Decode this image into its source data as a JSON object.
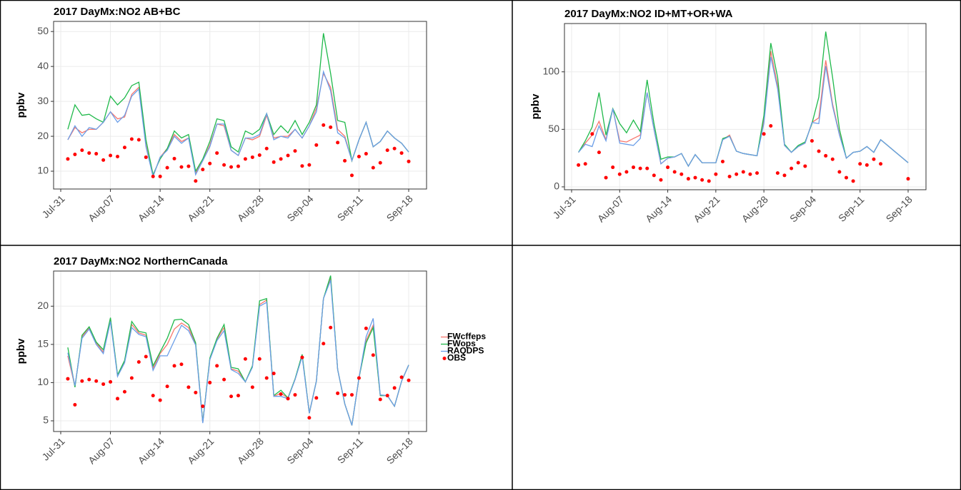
{
  "chart_data": [
    {
      "type": "line",
      "title": "2017 DayMx:NO2 AB+BC",
      "y_label": "ppbv",
      "x": [
        "Jul-31",
        "Aug-01",
        "Aug-02",
        "Aug-03",
        "Aug-04",
        "Aug-05",
        "Aug-06",
        "Aug-07",
        "Aug-08",
        "Aug-09",
        "Aug-10",
        "Aug-11",
        "Aug-12",
        "Aug-13",
        "Aug-14",
        "Aug-15",
        "Aug-16",
        "Aug-17",
        "Aug-18",
        "Aug-19",
        "Aug-20",
        "Aug-21",
        "Aug-22",
        "Aug-23",
        "Aug-24",
        "Aug-25",
        "Aug-26",
        "Aug-27",
        "Aug-28",
        "Aug-29",
        "Aug-30",
        "Aug-31",
        "Sep-01",
        "Sep-02",
        "Sep-03",
        "Sep-04",
        "Sep-05",
        "Sep-06",
        "Sep-07",
        "Sep-08",
        "Sep-09",
        "Sep-10",
        "Sep-11",
        "Sep-12",
        "Sep-13",
        "Sep-14",
        "Sep-15",
        "Sep-16",
        "Sep-17",
        "Sep-18"
      ],
      "xticks": [
        "Jul-31",
        "Aug-07",
        "Aug-14",
        "Aug-21",
        "Aug-28",
        "Sep-04",
        "Sep-11",
        "Sep-18"
      ],
      "ylim": [
        4.9,
        52.9
      ],
      "yticks": [
        10,
        20,
        30,
        40,
        50
      ],
      "grid": true,
      "series": [
        {
          "color": "#f8766d",
          "values": [
            null,
            19,
            22.5,
            21,
            22,
            22,
            24,
            27,
            25,
            25.5,
            32,
            34,
            17.5,
            8.5,
            14,
            16.5,
            20.5,
            18.5,
            19.5,
            9.5,
            13,
            17.5,
            23.5,
            23,
            16,
            14.5,
            19.5,
            19,
            20,
            26,
            19.5,
            20,
            20,
            22,
            19.5,
            23,
            28,
            38,
            34,
            22,
            20,
            13,
            19,
            24,
            17,
            18.5,
            21.5,
            19.5,
            18,
            15.5
          ]
        },
        {
          "color": "#1fb94a",
          "values": [
            null,
            22,
            29,
            26,
            26.3,
            25,
            24,
            31.5,
            29,
            31,
            34.5,
            35.5,
            19,
            9,
            13.5,
            16.5,
            21.5,
            19.5,
            20.5,
            10,
            13.5,
            18.5,
            25,
            24.5,
            17,
            15.5,
            21.5,
            20.5,
            22,
            26.5,
            20.5,
            23,
            21,
            24.5,
            20.5,
            24,
            29,
            49.5,
            38,
            24.5,
            24,
            13,
            19,
            24,
            17,
            18.5,
            21.5,
            19.5,
            18,
            15.5
          ]
        },
        {
          "color": "#6b9ee8",
          "values": [
            null,
            19,
            23,
            20,
            22.5,
            22,
            24,
            27,
            24,
            26,
            31.5,
            33.5,
            17,
            8.5,
            14,
            16,
            20,
            18,
            19.5,
            9,
            13,
            17,
            23.5,
            23.5,
            16,
            14.5,
            19.5,
            19.5,
            20.5,
            26.5,
            19,
            20,
            19.5,
            22,
            19.5,
            23,
            27,
            38.5,
            33,
            21,
            19.5,
            13,
            19,
            24,
            17,
            18.5,
            21.5,
            19.5,
            18,
            15.5
          ]
        },
        {
          "type": "scatter",
          "color": "#ff0000",
          "values": [
            null,
            13.5,
            14.8,
            16,
            15.2,
            15,
            13.2,
            14.5,
            14.2,
            16.8,
            19.2,
            19,
            14,
            8.5,
            8.5,
            11,
            13.6,
            11.2,
            11.4,
            7.2,
            10.5,
            12.2,
            15.2,
            11.8,
            11.2,
            11.4,
            13.5,
            14,
            14.6,
            16.5,
            12.6,
            13.5,
            14.5,
            15.8,
            11.5,
            11.8,
            17.5,
            23.2,
            22.6,
            18.2,
            13,
            8.8,
            14.2,
            15,
            11,
            12.4,
            16,
            16.5,
            15.2,
            12.8
          ]
        }
      ]
    },
    {
      "type": "line",
      "title": "2017 DayMx:NO2 ID+MT+OR+WA",
      "y_label": "ppbv",
      "x": [
        "Jul-31",
        "Aug-01",
        "Aug-02",
        "Aug-03",
        "Aug-04",
        "Aug-05",
        "Aug-06",
        "Aug-07",
        "Aug-08",
        "Aug-09",
        "Aug-10",
        "Aug-11",
        "Aug-12",
        "Aug-13",
        "Aug-14",
        "Aug-15",
        "Aug-16",
        "Aug-17",
        "Aug-18",
        "Aug-19",
        "Aug-20",
        "Aug-21",
        "Aug-22",
        "Aug-23",
        "Aug-24",
        "Aug-25",
        "Aug-26",
        "Aug-27",
        "Aug-28",
        "Aug-29",
        "Aug-30",
        "Aug-31",
        "Sep-01",
        "Sep-02",
        "Sep-03",
        "Sep-04",
        "Sep-05",
        "Sep-06",
        "Sep-07",
        "Sep-08",
        "Sep-09",
        "Sep-10",
        "Sep-11",
        "Sep-12",
        "Sep-13",
        "Sep-14",
        "Sep-15",
        "Sep-16",
        "Sep-17",
        "Sep-18"
      ],
      "xticks": [
        "Jul-31",
        "Aug-07",
        "Aug-14",
        "Aug-21",
        "Aug-28",
        "Sep-04",
        "Sep-11",
        "Sep-18"
      ],
      "ylim": [
        -2.5,
        142
      ],
      "yticks": [
        0,
        50,
        100
      ],
      "grid": true,
      "series": [
        {
          "color": "#f8766d",
          "values": [
            null,
            30,
            38,
            45,
            57,
            41,
            68,
            40,
            39,
            42,
            45,
            82,
            50,
            20,
            25,
            26,
            29,
            18,
            28,
            21,
            21,
            21,
            41,
            45,
            31,
            29,
            28,
            27,
            58,
            118,
            88,
            36,
            30,
            35,
            38,
            56,
            60,
            110,
            72,
            46,
            25,
            30,
            31,
            35,
            30,
            41,
            36,
            31,
            26,
            21
          ]
        },
        {
          "color": "#1fb94a",
          "values": [
            null,
            30,
            40,
            52,
            82,
            45,
            68,
            55,
            47,
            58,
            48,
            93,
            55,
            24,
            26,
            26,
            29,
            18,
            28,
            21,
            21,
            21,
            42,
            44,
            31,
            29,
            28,
            27,
            62,
            125,
            95,
            37,
            30,
            36,
            39,
            55,
            78,
            135,
            95,
            50,
            25,
            30,
            31,
            35,
            30,
            41,
            36,
            31,
            26,
            21
          ]
        },
        {
          "color": "#6b9ee8",
          "values": [
            null,
            30,
            37,
            35,
            53,
            40,
            68,
            38,
            37,
            36,
            42,
            82,
            50,
            20,
            25,
            26,
            29,
            18,
            28,
            21,
            21,
            21,
            41,
            44,
            31,
            29,
            28,
            27,
            55,
            113,
            85,
            36,
            30,
            35,
            38,
            56,
            55,
            105,
            70,
            45,
            25,
            30,
            31,
            35,
            30,
            41,
            36,
            31,
            26,
            21
          ]
        },
        {
          "type": "scatter",
          "color": "#ff0000",
          "values": [
            null,
            19,
            20,
            46,
            30,
            8,
            17,
            11,
            13,
            17,
            16,
            16,
            10,
            6,
            17,
            13,
            11,
            7,
            8,
            6,
            5,
            11,
            22,
            9,
            11,
            13,
            11,
            12,
            46,
            53,
            12,
            10,
            16,
            21,
            18,
            40,
            31,
            27,
            24,
            13,
            8,
            5,
            20,
            19,
            24,
            20,
            null,
            null,
            null,
            7
          ]
        }
      ]
    },
    {
      "type": "line",
      "title": "2017 DayMx:NO2 NorthernCanada",
      "y_label": "ppbv",
      "legend": "right",
      "x": [
        "Jul-31",
        "Aug-01",
        "Aug-02",
        "Aug-03",
        "Aug-04",
        "Aug-05",
        "Aug-06",
        "Aug-07",
        "Aug-08",
        "Aug-09",
        "Aug-10",
        "Aug-11",
        "Aug-12",
        "Aug-13",
        "Aug-14",
        "Aug-15",
        "Aug-16",
        "Aug-17",
        "Aug-18",
        "Aug-19",
        "Aug-20",
        "Aug-21",
        "Aug-22",
        "Aug-23",
        "Aug-24",
        "Aug-25",
        "Aug-26",
        "Aug-27",
        "Aug-28",
        "Aug-29",
        "Aug-30",
        "Aug-31",
        "Sep-01",
        "Sep-02",
        "Sep-03",
        "Sep-04",
        "Sep-05",
        "Sep-06",
        "Sep-07",
        "Sep-08",
        "Sep-09",
        "Sep-10",
        "Sep-11",
        "Sep-12",
        "Sep-13",
        "Sep-14",
        "Sep-15",
        "Sep-16",
        "Sep-17",
        "Sep-18"
      ],
      "xticks": [
        "Jul-31",
        "Aug-07",
        "Aug-14",
        "Aug-21",
        "Aug-28",
        "Sep-04",
        "Sep-11",
        "Sep-18"
      ],
      "ylim": [
        3.6,
        24.6
      ],
      "yticks": [
        5,
        10,
        15,
        20
      ],
      "grid": true,
      "series": [
        {
          "name": "FWcffeps",
          "color": "#f8766d",
          "values": [
            null,
            13.5,
            9.5,
            16,
            17.2,
            15.2,
            14,
            18.3,
            10.9,
            12.8,
            17.6,
            16.5,
            16.2,
            11.9,
            13.8,
            15,
            17,
            17.8,
            17.2,
            15,
            4.8,
            13.1,
            15.7,
            17.2,
            11.8,
            11.5,
            10.1,
            12.1,
            20.2,
            20.8,
            8.2,
            8.6,
            8,
            10.4,
            13.5,
            6,
            10.2,
            21,
            23.7,
            11.7,
            7.2,
            4.4,
            10.6,
            15.5,
            17.5,
            8.3,
            8.3,
            6.9,
            10.2,
            12.3
          ]
        },
        {
          "name": "FWops",
          "color": "#1fb94a",
          "values": [
            null,
            14.6,
            9.4,
            16.2,
            17.3,
            15.3,
            14.3,
            18.5,
            11,
            12.9,
            18,
            16.7,
            16.5,
            12.2,
            14,
            15.8,
            18.2,
            18.3,
            17.6,
            15.2,
            4.8,
            13.2,
            15.8,
            17.6,
            12,
            11.8,
            10.1,
            12.2,
            20.7,
            21,
            8.3,
            9,
            8,
            10.5,
            13.7,
            6,
            10.2,
            21,
            24,
            11.7,
            7.2,
            4.4,
            10.6,
            15.2,
            17.2,
            8.3,
            8.3,
            6.9,
            10.2,
            12.3
          ]
        },
        {
          "name": "RAQDPS",
          "color": "#6b9ee8",
          "values": [
            null,
            13.9,
            9.6,
            15.8,
            17,
            15,
            13.8,
            18,
            10.8,
            12.6,
            17.2,
            16.3,
            16,
            11.6,
            13.5,
            13.5,
            15.5,
            17.5,
            16.8,
            14.9,
            4.7,
            13,
            15.5,
            16.8,
            11.7,
            11.2,
            10.1,
            12,
            20,
            20.5,
            8.2,
            8.2,
            7.9,
            10.4,
            13.4,
            6,
            10.2,
            21,
            23.4,
            11.7,
            7.2,
            4.4,
            10.6,
            16,
            18.4,
            8.4,
            8.3,
            6.9,
            10.2,
            12.3
          ]
        },
        {
          "name": "OBS",
          "type": "scatter",
          "color": "#ff0000",
          "values": [
            null,
            10.5,
            7.1,
            10.2,
            10.4,
            10.2,
            9.8,
            10.1,
            7.9,
            8.8,
            10.6,
            12.7,
            13.4,
            8.3,
            7.7,
            9.5,
            12.2,
            12.4,
            9.4,
            8.7,
            6.9,
            10,
            12.2,
            10.4,
            8.2,
            8.3,
            13.1,
            9.4,
            13.1,
            10.6,
            11.2,
            8.5,
            7.9,
            8.4,
            13.3,
            5.4,
            8,
            15.1,
            17.2,
            8.6,
            8.4,
            8.4,
            10.6,
            17.1,
            13.6,
            7.8,
            8.3,
            9.3,
            10.7,
            10.3
          ]
        }
      ]
    }
  ]
}
